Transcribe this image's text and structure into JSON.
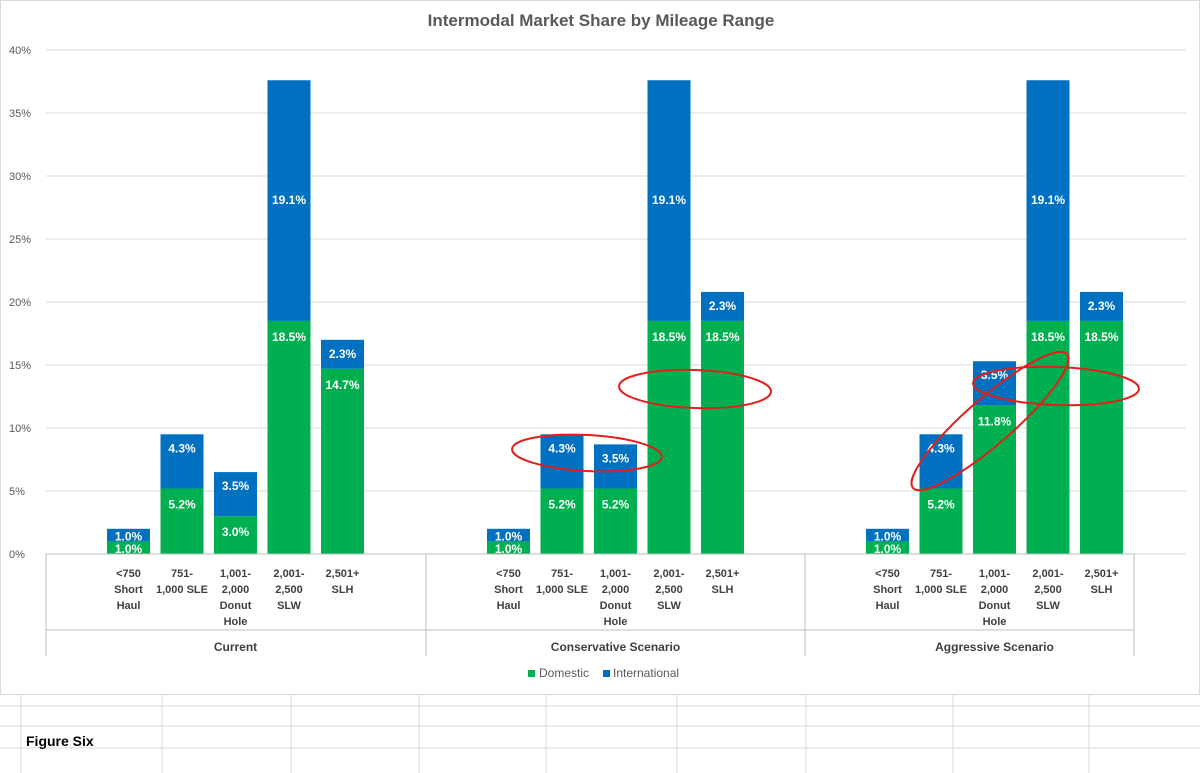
{
  "chart_data": {
    "type": "bar",
    "stacked": true,
    "title": "Intermodal Market Share by Mileage Range",
    "ylim": [
      0,
      40
    ],
    "yticks": [
      0,
      5,
      10,
      15,
      20,
      25,
      30,
      35,
      40
    ],
    "ytick_labels": [
      "0%",
      "5%",
      "10%",
      "15%",
      "20%",
      "25%",
      "30%",
      "35%",
      "40%"
    ],
    "grid": true,
    "legend": "bottom",
    "groups": [
      {
        "name": "Current",
        "categories": [
          [
            "<750",
            "Short",
            "Haul"
          ],
          [
            "751-",
            "1,000 SLE"
          ],
          [
            "1,001-",
            "2,000",
            "Donut",
            "Hole"
          ],
          [
            "2,001-",
            "2,500",
            "SLW"
          ],
          [
            "2,501+",
            "SLH"
          ]
        ],
        "domestic": [
          1.0,
          5.2,
          3.0,
          18.5,
          14.7
        ],
        "international": [
          1.0,
          4.3,
          3.5,
          19.1,
          2.3
        ]
      },
      {
        "name": "Conservative Scenario",
        "categories": [
          [
            "<750",
            "Short",
            "Haul"
          ],
          [
            "751-",
            "1,000 SLE"
          ],
          [
            "1,001-",
            "2,000",
            "Donut",
            "Hole"
          ],
          [
            "2,001-",
            "2,500",
            "SLW"
          ],
          [
            "2,501+",
            "SLH"
          ]
        ],
        "domestic": [
          1.0,
          5.2,
          5.2,
          18.5,
          18.5
        ],
        "international": [
          1.0,
          4.3,
          3.5,
          19.1,
          2.3
        ]
      },
      {
        "name": "Aggressive Scenario",
        "categories": [
          [
            "<750",
            "Short",
            "Haul"
          ],
          [
            "751-",
            "1,000 SLE"
          ],
          [
            "1,001-",
            "2,000",
            "Donut",
            "Hole"
          ],
          [
            "2,001-",
            "2,500",
            "SLW"
          ],
          [
            "2,501+",
            "SLH"
          ]
        ],
        "domestic": [
          1.0,
          5.2,
          11.8,
          18.5,
          18.5
        ],
        "international": [
          1.0,
          4.3,
          3.5,
          19.1,
          2.3
        ]
      }
    ],
    "series": [
      {
        "name": "Domestic",
        "color": "#00b050"
      },
      {
        "name": "International",
        "color": "#0070c0"
      }
    ],
    "annotation_color": "#e0201a"
  },
  "sheet": {
    "figure_label": "Figure Six"
  }
}
